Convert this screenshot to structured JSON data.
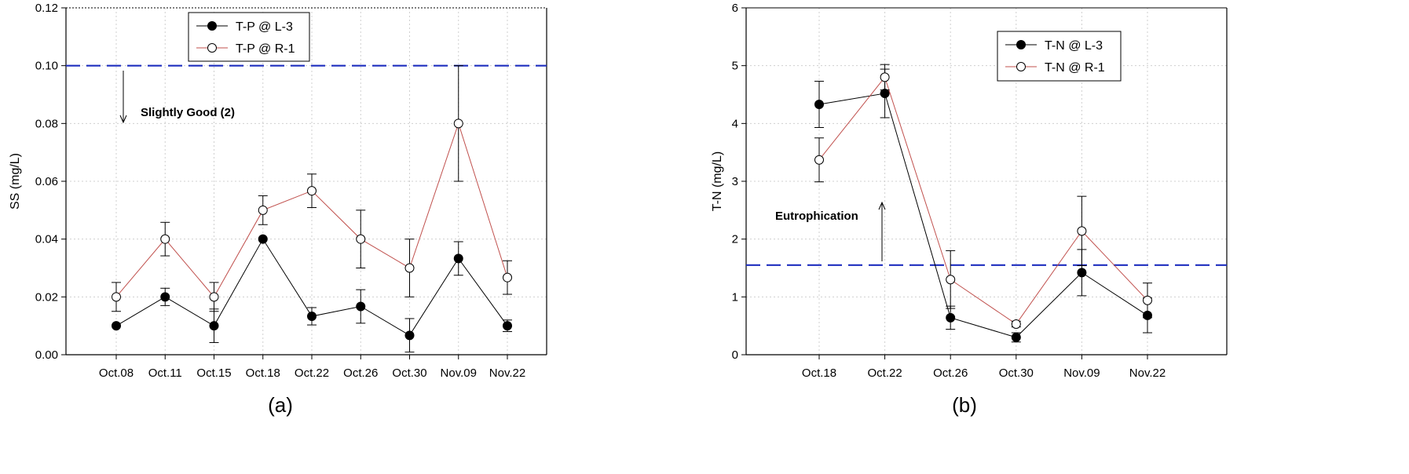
{
  "chart_data": [
    {
      "type": "line",
      "panel_label": "(a)",
      "ylabel": "SS (mg/L)",
      "xlabel": "",
      "categories": [
        "Oct.08",
        "Oct.11",
        "Oct.15",
        "Oct.18",
        "Oct.22",
        "Oct.26",
        "Oct.30",
        "Nov.09",
        "Nov.22"
      ],
      "ylim": [
        0,
        0.12
      ],
      "yticks": [
        "0.00",
        "0.02",
        "0.04",
        "0.06",
        "0.08",
        "0.10",
        "0.12"
      ],
      "grid": true,
      "legend_position": "top-center",
      "series": [
        {
          "name": "T-P @ L-3",
          "marker": "filled-circle",
          "color": "#000000",
          "values": [
            0.01,
            0.02,
            0.01,
            0.04,
            0.0133,
            0.0167,
            0.0067,
            0.0333,
            0.01
          ],
          "errors": [
            0.0,
            0.003,
            0.0058,
            0.0,
            0.003,
            0.0058,
            0.0058,
            0.0058,
            0.002
          ]
        },
        {
          "name": "T-P @ R-1",
          "marker": "open-circle",
          "color": "#c0504d",
          "values": [
            0.02,
            0.04,
            0.02,
            0.05,
            0.0567,
            0.04,
            0.03,
            0.08,
            0.0267
          ],
          "errors": [
            0.005,
            0.0058,
            0.005,
            0.005,
            0.0058,
            0.01,
            0.01,
            0.02,
            0.0058
          ]
        }
      ],
      "reference_line": {
        "value": 0.1,
        "color": "#1f2fbf",
        "style": "dashed"
      },
      "annotation": {
        "text": "Slightly Good (2)",
        "arrow": "down"
      }
    },
    {
      "type": "line",
      "panel_label": "(b)",
      "ylabel": "T-N (mg/L)",
      "xlabel": "",
      "categories": [
        "Oct.18",
        "Oct.22",
        "Oct.26",
        "Oct.30",
        "Nov.09",
        "Nov.22"
      ],
      "ylim": [
        0,
        6
      ],
      "yticks": [
        "0",
        "1",
        "2",
        "3",
        "4",
        "5",
        "6"
      ],
      "grid": true,
      "legend_position": "top-right",
      "series": [
        {
          "name": "T-N @ L-3",
          "marker": "filled-circle",
          "color": "#000000",
          "values": [
            4.33,
            4.52,
            0.64,
            0.3,
            1.42,
            0.68
          ],
          "errors": [
            0.4,
            0.42,
            0.2,
            0.08,
            0.4,
            0.3
          ]
        },
        {
          "name": "T-N @ R-1",
          "marker": "open-circle",
          "color": "#c0504d",
          "values": [
            3.37,
            4.8,
            1.3,
            0.53,
            2.14,
            0.94
          ],
          "errors": [
            0.38,
            0.22,
            0.5,
            0.05,
            0.6,
            0.3
          ]
        }
      ],
      "reference_line": {
        "value": 1.55,
        "color": "#1f2fbf",
        "style": "dashed"
      },
      "annotation": {
        "text": "Eutrophication",
        "arrow": "up"
      }
    }
  ]
}
